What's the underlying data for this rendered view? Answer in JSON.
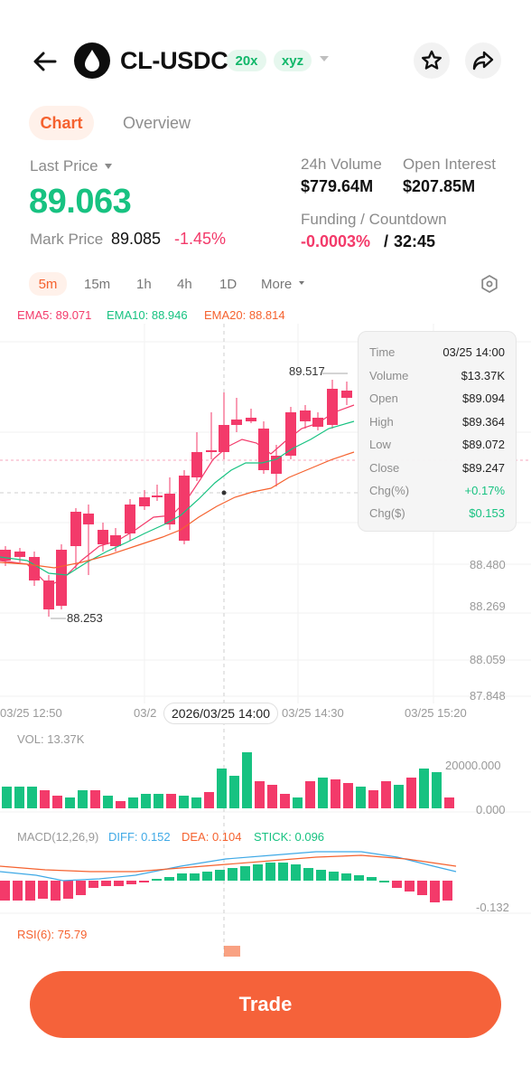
{
  "header": {
    "pair": "CL-USDC",
    "leverage_badge": "20x",
    "dex_badge": "xyz",
    "icons": {
      "back": "back-arrow-icon",
      "logo": "oil-drop-icon",
      "star": "star-icon",
      "share": "share-icon"
    }
  },
  "tabs": [
    {
      "label": "Chart",
      "active": true
    },
    {
      "label": "Overview",
      "active": false
    }
  ],
  "market": {
    "last_price_label": "Last Price",
    "last_price": "89.063",
    "mark_price_label": "Mark Price",
    "mark_price": "89.085",
    "change": "-1.45%",
    "volume_label": "24h Volume",
    "volume": "$779.64M",
    "oi_label": "Open Interest",
    "oi": "$207.85M",
    "funding_label": "Funding / Countdown",
    "funding": "-0.0003%",
    "separator": "/",
    "countdown": "32:45"
  },
  "intervals": [
    {
      "label": "5m",
      "active": true
    },
    {
      "label": "15m",
      "active": false
    },
    {
      "label": "1h",
      "active": false
    },
    {
      "label": "4h",
      "active": false
    },
    {
      "label": "1D",
      "active": false
    },
    {
      "label": "More",
      "active": false
    }
  ],
  "ema": {
    "ema5": "EMA5: 89.071",
    "ema10": "EMA10: 88.946",
    "ema20": "EMA20: 88.814"
  },
  "chart": {
    "y_ticks": [
      "88.480",
      "88.269",
      "88.059",
      "87.848"
    ],
    "high_label": "89.517",
    "low_label": "88.253",
    "x_labels": [
      "03/25 12:50",
      "03/2",
      "03/25 14:30",
      "03/25 15:20"
    ],
    "crosshair_time": "2026/03/25 14:00",
    "vol_label": "VOL: 13.37K",
    "vol_ticks": [
      "20000.000",
      "0.000"
    ],
    "macd_label": "MACD(12,26,9)",
    "macd_diff": "DIFF: 0.152",
    "macd_dea": "DEA: 0.104",
    "macd_stick": "STICK: 0.096",
    "macd_tick": "-0.132",
    "rsi_label": "RSI(6): 75.79"
  },
  "tooltip": [
    {
      "k": "Time",
      "v": "03/25 14:00"
    },
    {
      "k": "Volume",
      "v": "$13.37K"
    },
    {
      "k": "Open",
      "v": "$89.094"
    },
    {
      "k": "High",
      "v": "$89.364"
    },
    {
      "k": "Low",
      "v": "$89.072"
    },
    {
      "k": "Close",
      "v": "$89.247"
    },
    {
      "k": "Chg(%)",
      "v": "+0.17%"
    },
    {
      "k": "Chg($)",
      "v": "$0.153"
    }
  ],
  "trade_button": "Trade",
  "colors": {
    "up": "#17c281",
    "down": "#f33a6a",
    "accent": "#f5623a"
  }
}
